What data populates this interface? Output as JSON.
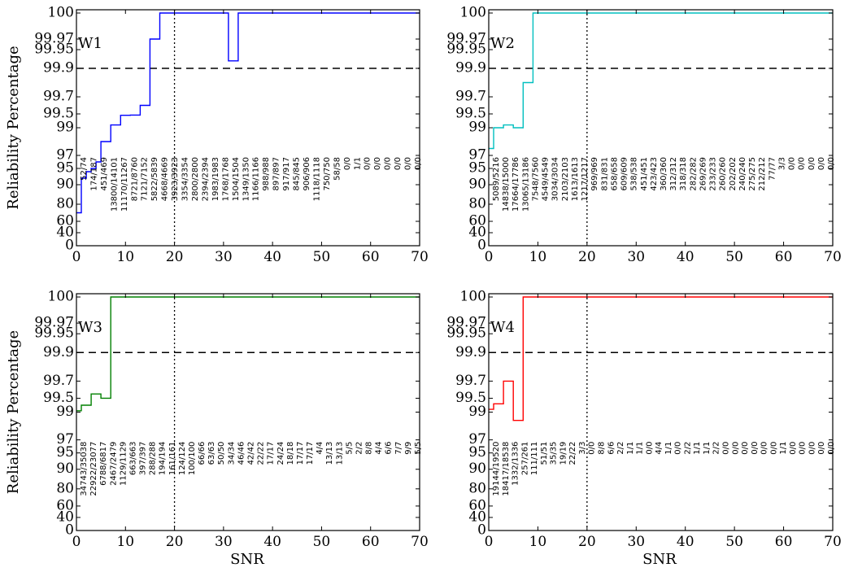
{
  "figure": {
    "xlabel": "SNR",
    "ylabel": "Reliability Percentage"
  },
  "chart_data": [
    {
      "type": "line",
      "label": "W1",
      "color": "#0000ff",
      "xlabel": "",
      "ylabel": "Reliability Percentage",
      "xlim": [
        0,
        70
      ],
      "xticks": [
        "0",
        "10",
        "20",
        "30",
        "40",
        "50",
        "60",
        "70"
      ],
      "yticks": [
        "0",
        "40",
        "60",
        "80",
        "90",
        "95",
        "97",
        "99",
        "99.5",
        "99.7",
        "99.9",
        "99.95",
        "99.97",
        "100"
      ],
      "scale": "inverse-log reliability (log of 100 - percentage)",
      "threshold": 99.9,
      "vline": 20,
      "series": [
        {
          "x": [
            0,
            1,
            2,
            3,
            4,
            5,
            6,
            7,
            8,
            9,
            10,
            11,
            12,
            13,
            14,
            15,
            16,
            17,
            18,
            19,
            20,
            21,
            22,
            23,
            24,
            25,
            26,
            27,
            28,
            29,
            30,
            31,
            32,
            33,
            34,
            35,
            36,
            37,
            38,
            39,
            40,
            41,
            42,
            43,
            44,
            45,
            46,
            47,
            48,
            49,
            50,
            51,
            52,
            53,
            54,
            55,
            56,
            57,
            58,
            59,
            60,
            61,
            62,
            63,
            64,
            65,
            66,
            67,
            68,
            69,
            70
          ],
          "y": [
            70,
            92,
            94,
            95,
            96,
            98,
            98,
            99.1,
            99.1,
            99.45,
            99.45,
            99.46,
            99.46,
            99.6,
            99.6,
            99.97,
            99.97,
            100,
            100,
            100,
            100,
            100,
            100,
            100,
            100,
            100,
            100,
            100,
            100,
            100,
            100,
            99.92,
            99.92,
            100,
            100,
            100,
            100,
            100,
            100,
            100,
            100,
            100,
            100,
            100,
            100,
            100,
            100,
            100,
            100,
            100,
            100,
            100,
            100,
            100,
            100,
            100,
            100,
            100,
            100,
            100,
            100,
            100,
            100,
            100,
            100,
            100,
            100,
            100,
            100,
            100,
            100
          ]
        }
      ],
      "counts": [
        "52/74",
        "174/187",
        "451/469",
        "13800/14101",
        "11170/11267",
        "8721/8760",
        "7121/7152",
        "5822/5839",
        "4668/4669",
        "3923/3923",
        "3354/3354",
        "2800/2800",
        "2394/2394",
        "1983/1983",
        "1768/1768",
        "1504/1504",
        "1349/1350",
        "1166/1166",
        "988/988",
        "897/897",
        "917/917",
        "845/845",
        "906/906",
        "1118/1118",
        "750/750",
        "58/58",
        "0/0",
        "1/1",
        "0/0",
        "0/0",
        "0/0",
        "0/0",
        "0/0",
        "0/0"
      ]
    },
    {
      "type": "line",
      "label": "W2",
      "color": "#00bfbf",
      "xlabel": "",
      "ylabel": "",
      "xlim": [
        0,
        70
      ],
      "xticks": [
        "0",
        "10",
        "20",
        "30",
        "40",
        "50",
        "60",
        "70"
      ],
      "yticks": [
        "0",
        "40",
        "60",
        "80",
        "90",
        "95",
        "97",
        "99",
        "99.5",
        "99.7",
        "99.9",
        "99.95",
        "99.97",
        "100"
      ],
      "scale": "inverse-log reliability (log of 100 - percentage)",
      "threshold": 99.9,
      "vline": 20,
      "series": [
        {
          "x": [
            0,
            1,
            2,
            3,
            4,
            5,
            6,
            7,
            8,
            9,
            10,
            70
          ],
          "y": [
            97.5,
            99,
            99,
            99.1,
            99.1,
            99,
            99,
            99.8,
            99.8,
            100,
            100,
            100
          ]
        }
      ],
      "counts": [
        "5089/5216",
        "14838/15000",
        "17664/17786",
        "13065/13186",
        "7548/7560",
        "4549/4549",
        "3034/3034",
        "2103/2103",
        "1613/1613",
        "1217/1217",
        "969/969",
        "831/831",
        "658/658",
        "609/609",
        "538/538",
        "451/451",
        "423/423",
        "360/360",
        "312/312",
        "318/318",
        "282/282",
        "269/269",
        "233/233",
        "260/260",
        "202/202",
        "240/240",
        "275/275",
        "212/212",
        "77/77",
        "3/3",
        "0/0",
        "0/0",
        "0/0",
        "0/0",
        "0/0"
      ]
    },
    {
      "type": "line",
      "label": "W3",
      "color": "#008000",
      "xlabel": "SNR",
      "ylabel": "Reliability Percentage",
      "xlim": [
        0,
        70
      ],
      "xticks": [
        "0",
        "10",
        "20",
        "30",
        "40",
        "50",
        "60",
        "70"
      ],
      "yticks": [
        "0",
        "40",
        "60",
        "80",
        "90",
        "95",
        "97",
        "99",
        "99.5",
        "99.7",
        "99.9",
        "99.95",
        "99.97",
        "100"
      ],
      "scale": "inverse-log reliability (log of 100 - percentage)",
      "threshold": 99.9,
      "vline": 20,
      "series": [
        {
          "x": [
            0,
            1,
            3,
            5,
            7,
            70
          ],
          "y": [
            99.05,
            99.25,
            99.55,
            99.5,
            100,
            100
          ]
        }
      ],
      "counts": [
        "34743/35038",
        "22922/23077",
        "6788/6817",
        "2467/2479",
        "1129/1129",
        "663/663",
        "397/397",
        "288/288",
        "194/194",
        "161/161",
        "124/124",
        "100/100",
        "66/66",
        "63/63",
        "50/50",
        "34/34",
        "46/46",
        "42/42",
        "22/22",
        "17/17",
        "24/24",
        "18/18",
        "17/17",
        "17/17",
        "4/4",
        "13/13",
        "13/13",
        "5/5",
        "2/2",
        "8/8",
        "4/4",
        "6/6",
        "7/7",
        "9/9",
        "5/5"
      ]
    },
    {
      "type": "line",
      "label": "W4",
      "color": "#ff0000",
      "xlabel": "SNR",
      "ylabel": "",
      "xlim": [
        0,
        70
      ],
      "xticks": [
        "0",
        "10",
        "20",
        "30",
        "40",
        "50",
        "60",
        "70"
      ],
      "yticks": [
        "0",
        "40",
        "60",
        "80",
        "90",
        "95",
        "97",
        "99",
        "99.5",
        "99.7",
        "99.9",
        "99.95",
        "99.97",
        "100"
      ],
      "scale": "inverse-log reliability (log of 100 - percentage)",
      "threshold": 99.9,
      "vline": 20,
      "series": [
        {
          "x": [
            0,
            1,
            3,
            5,
            7,
            70
          ],
          "y": [
            99.1,
            99.3,
            99.7,
            98.4,
            100,
            100
          ]
        }
      ],
      "counts": [
        "19144/19520",
        "18417/18538",
        "1332/1336",
        "257/261",
        "111/111",
        "51/51",
        "35/35",
        "19/19",
        "22/22",
        "3/3",
        "0/0",
        "8/8",
        "6/6",
        "2/2",
        "1/1",
        "1/1",
        "0/0",
        "4/4",
        "1/1",
        "0/0",
        "2/2",
        "1/1",
        "1/1",
        "2/2",
        "0/0",
        "0/0",
        "0/0",
        "0/0",
        "0/0",
        "0/0",
        "1/1",
        "0/0",
        "0/0",
        "0/0",
        "0/0",
        "0/0"
      ]
    }
  ]
}
